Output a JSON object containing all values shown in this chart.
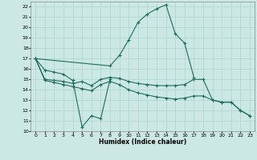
{
  "xlabel": "Humidex (Indice chaleur)",
  "bg_color": "#cce8e4",
  "grid_color": "#aad4cc",
  "line_color": "#1e6b5e",
  "xlim": [
    -0.5,
    23.5
  ],
  "ylim": [
    10,
    22.5
  ],
  "yticks": [
    10,
    11,
    12,
    13,
    14,
    15,
    16,
    17,
    18,
    19,
    20,
    21,
    22
  ],
  "xticks": [
    0,
    1,
    2,
    3,
    4,
    5,
    6,
    7,
    8,
    9,
    10,
    11,
    12,
    13,
    14,
    15,
    16,
    17,
    18,
    19,
    20,
    21,
    22,
    23
  ],
  "lines": [
    {
      "x": [
        0,
        1,
        2,
        3,
        4,
        5,
        6,
        7,
        8
      ],
      "y": [
        17.0,
        15.9,
        15.7,
        15.5,
        14.9,
        10.4,
        11.5,
        11.2,
        15.0
      ]
    },
    {
      "x": [
        0,
        8,
        9,
        10,
        11,
        12,
        13,
        14,
        15,
        16,
        17
      ],
      "y": [
        17.0,
        16.3,
        17.3,
        18.8,
        20.5,
        21.3,
        21.8,
        22.2,
        19.4,
        18.5,
        15.2
      ]
    },
    {
      "x": [
        0,
        1,
        2,
        3,
        4,
        5,
        6,
        7,
        8,
        9,
        10,
        11,
        12,
        13,
        14,
        15,
        16,
        17,
        18,
        19,
        20,
        21,
        22,
        23
      ],
      "y": [
        17.0,
        15.0,
        14.9,
        14.8,
        14.6,
        14.8,
        14.4,
        15.0,
        15.2,
        15.1,
        14.8,
        14.6,
        14.5,
        14.4,
        14.4,
        14.4,
        14.5,
        15.0,
        15.0,
        13.0,
        12.8,
        12.8,
        12.0,
        11.5
      ]
    },
    {
      "x": [
        0,
        1,
        2,
        3,
        4,
        5,
        6,
        7,
        8,
        9,
        10,
        11,
        12,
        13,
        14,
        15,
        16,
        17,
        18,
        19,
        20,
        21,
        22,
        23
      ],
      "y": [
        17.0,
        14.9,
        14.7,
        14.5,
        14.3,
        14.1,
        13.9,
        14.5,
        14.8,
        14.5,
        14.0,
        13.7,
        13.5,
        13.3,
        13.2,
        13.1,
        13.2,
        13.4,
        13.4,
        13.0,
        12.8,
        12.8,
        12.0,
        11.5
      ]
    }
  ]
}
